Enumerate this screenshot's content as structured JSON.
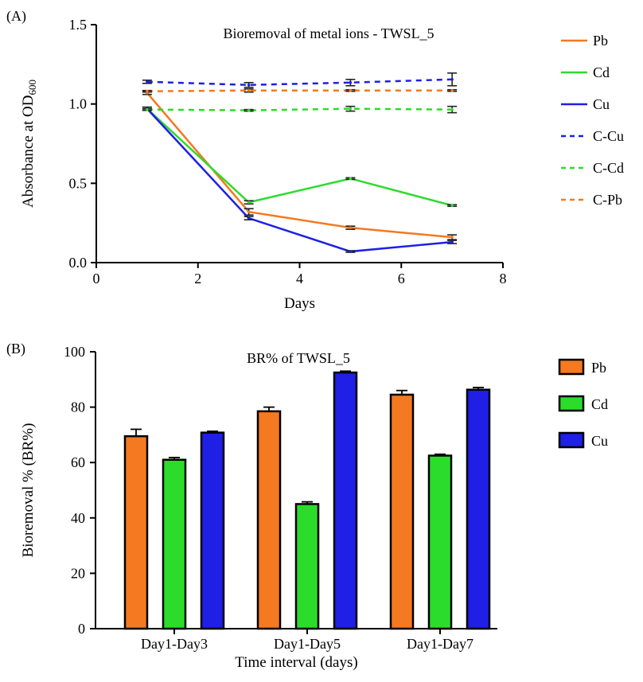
{
  "chart_data": [
    {
      "panel_label": "(A)",
      "type": "line",
      "title": "Bioremoval of metal ions - TWSL_5",
      "xlabel": "Days",
      "ylabel_main": "Absorbance at OD",
      "ylabel_sub": "600",
      "xlim": [
        0,
        8
      ],
      "ylim": [
        0.0,
        1.5
      ],
      "xticks": [
        0,
        2,
        4,
        6,
        8
      ],
      "xtick_labels": [
        "0",
        "2",
        "4",
        "6",
        "8"
      ],
      "yticks": [
        0.0,
        0.5,
        1.0,
        1.5
      ],
      "ytick_labels": [
        "0.0",
        "0.5",
        "1.0",
        "1.5"
      ],
      "legend_position": "right",
      "series": [
        {
          "name": "Pb",
          "color": "#f47920",
          "dashed": false,
          "points": [
            [
              1,
              1.07
            ],
            [
              3,
              0.32
            ],
            [
              5,
              0.22
            ],
            [
              7,
              0.16
            ]
          ],
          "err": [
            0.01,
            0.02,
            0.01,
            0.015
          ]
        },
        {
          "name": "Cd",
          "color": "#2bdc2b",
          "dashed": false,
          "points": [
            [
              1,
              0.97
            ],
            [
              3,
              0.38
            ],
            [
              5,
              0.53
            ],
            [
              7,
              0.36
            ]
          ],
          "err": [
            0.01,
            0.01,
            0.005,
            0.005
          ]
        },
        {
          "name": "Cu",
          "color": "#1f1fe6",
          "dashed": false,
          "points": [
            [
              1,
              0.97
            ],
            [
              3,
              0.28
            ],
            [
              5,
              0.07
            ],
            [
              7,
              0.13
            ]
          ],
          "err": [
            0.01,
            0.01,
            0.005,
            0.01
          ]
        },
        {
          "name": "C-Cu",
          "color": "#1f1fe6",
          "dashed": true,
          "points": [
            [
              1,
              1.14
            ],
            [
              3,
              1.12
            ],
            [
              5,
              1.135
            ],
            [
              7,
              1.155
            ]
          ],
          "err": [
            0.01,
            0.015,
            0.02,
            0.04
          ]
        },
        {
          "name": "C-Cd",
          "color": "#2bdc2b",
          "dashed": true,
          "points": [
            [
              1,
              0.965
            ],
            [
              3,
              0.96
            ],
            [
              5,
              0.97
            ],
            [
              7,
              0.965
            ]
          ],
          "err": [
            0.005,
            0.005,
            0.015,
            0.02
          ]
        },
        {
          "name": "C-Pb",
          "color": "#f47920",
          "dashed": true,
          "points": [
            [
              1,
              1.08
            ],
            [
              3,
              1.085
            ],
            [
              5,
              1.085
            ],
            [
              7,
              1.085
            ]
          ],
          "err": [
            0.005,
            0.01,
            0.005,
            0.005
          ]
        }
      ]
    },
    {
      "panel_label": "(B)",
      "type": "bar",
      "title": "BR% of TWSL_5",
      "xlabel": "Time interval (days)",
      "ylabel": "Bioremoval % (BR%)",
      "ylim": [
        0,
        100
      ],
      "yticks": [
        0,
        20,
        40,
        60,
        80,
        100
      ],
      "ytick_labels": [
        "0",
        "20",
        "40",
        "60",
        "80",
        "100"
      ],
      "categories": [
        "Day1-Day3",
        "Day1-Day5",
        "Day1-Day7"
      ],
      "legend_position": "right",
      "series": [
        {
          "name": "Pb",
          "color": "#f47920",
          "values": [
            69.5,
            78.5,
            84.5
          ],
          "err": [
            2.5,
            1.5,
            1.5
          ]
        },
        {
          "name": "Cd",
          "color": "#2bdc2b",
          "values": [
            61,
            45,
            62.5
          ],
          "err": [
            0.8,
            0.8,
            0.5
          ]
        },
        {
          "name": "Cu",
          "color": "#1f1fe6",
          "values": [
            70.8,
            92.5,
            86.3
          ],
          "err": [
            0.5,
            0.5,
            0.8
          ]
        }
      ]
    }
  ]
}
